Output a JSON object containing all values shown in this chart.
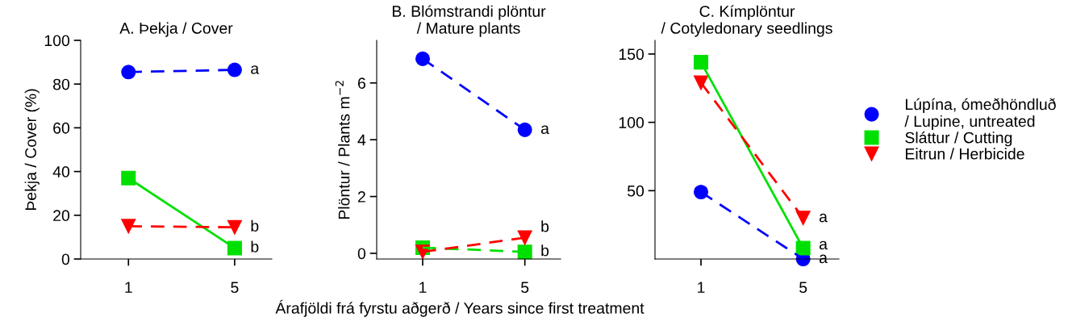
{
  "chart_data": [
    {
      "type": "line",
      "title": "A. Þekja / Cover",
      "ylabel": "Þekja / Cover (%)",
      "categories": [
        "1",
        "5"
      ],
      "ylim": [
        0,
        100
      ],
      "yticks": [
        0,
        20,
        40,
        60,
        80,
        100
      ],
      "grid": false,
      "legend": false,
      "series": [
        {
          "color": "#0000ff",
          "marker": "circle",
          "line_style": "dashed",
          "values": [
            85.5,
            86.5
          ]
        },
        {
          "color": "#00e000",
          "marker": "square",
          "line_style": "solid",
          "values": [
            37,
            5
          ]
        },
        {
          "color": "#ff0000",
          "marker": "triangle",
          "line_style": "dashed",
          "values": [
            15,
            14.5
          ]
        }
      ],
      "annotations": [
        {
          "text": "a",
          "x": "5",
          "y": 86.5
        },
        {
          "text": "b",
          "x": "5",
          "y": 14.5
        },
        {
          "text": "b",
          "x": "5",
          "y": 5
        }
      ]
    },
    {
      "type": "line",
      "title": "B. Blómstrandi plöntur\n/ Mature plants",
      "ylabel": "Plöntur / Plants m$^{−2}$",
      "xlabel": "Árafjöldi frá fyrstu aðgerð / Years since first treatment",
      "categories": [
        "1",
        "5"
      ],
      "ylim": [
        -0.2,
        7.5
      ],
      "yticks": [
        0,
        2,
        4,
        6
      ],
      "grid": false,
      "legend": false,
      "series": [
        {
          "color": "#0000ff",
          "marker": "circle",
          "line_style": "dashed",
          "values": [
            6.85,
            4.35
          ]
        },
        {
          "color": "#00e000",
          "marker": "square",
          "line_style": "dashed",
          "values": [
            0.2,
            0.05
          ]
        },
        {
          "color": "#ff0000",
          "marker": "triangle",
          "line_style": "dashed",
          "values": [
            0.05,
            0.55
          ]
        }
      ],
      "annotations": [
        {
          "text": "a",
          "x": "5",
          "y": 4.35
        },
        {
          "text": "b",
          "x": "5",
          "y": 0.9
        },
        {
          "text": "b",
          "x": "5",
          "y": 0.05
        }
      ]
    },
    {
      "type": "line",
      "title": "C. Kímplöntur\n/ Cotyledonary seedlings",
      "categories": [
        "1",
        "5"
      ],
      "ylim": [
        0,
        160
      ],
      "yticks": [
        50,
        100,
        150
      ],
      "grid": false,
      "legend": "right",
      "series": [
        {
          "name": "Lúpína, ómeðhöndluð\n/ Lupine, untreated",
          "color": "#0000ff",
          "marker": "circle",
          "line_style": "dashed",
          "values": [
            49,
            0
          ]
        },
        {
          "name": "Sláttur / Cutting",
          "color": "#00e000",
          "marker": "square",
          "line_style": "solid",
          "values": [
            144,
            8
          ]
        },
        {
          "name": "Eitrun / Herbicide",
          "color": "#ff0000",
          "marker": "triangle",
          "line_style": "dashed",
          "values": [
            129,
            30
          ]
        }
      ],
      "annotations": [
        {
          "text": "a",
          "x": "5",
          "y": 30
        },
        {
          "text": "a",
          "x": "5",
          "y": 10
        },
        {
          "text": "a",
          "x": "5",
          "y": 0
        }
      ]
    }
  ]
}
